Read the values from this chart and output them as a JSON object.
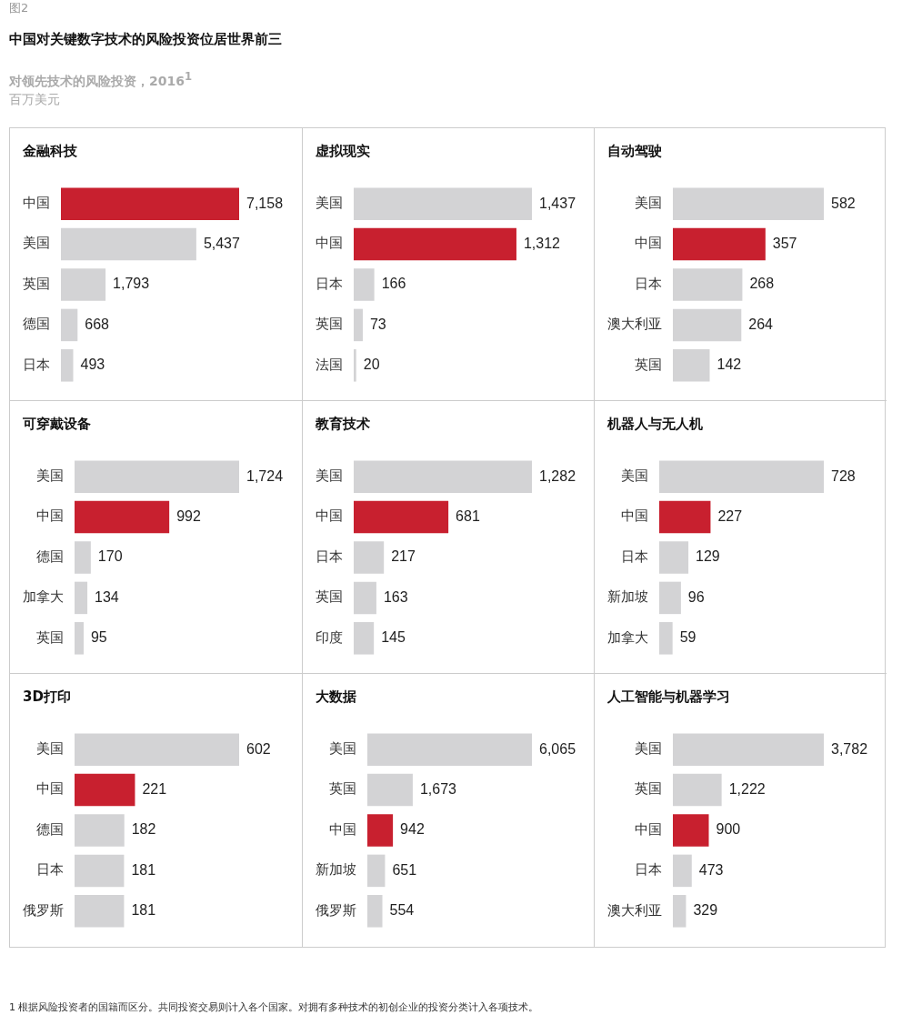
{
  "chart_data": [
    {
      "type": "other",
      "title": "中国对关键数字技术的风险投资位居世界前三",
      "subtitle": "对领先技术的风险投资，2016$^{1}$",
      "annotations": [
        "图2",
        "百万美元"
      ]
    },
    {
      "type": "bar",
      "orientation": "horizontal",
      "title": "金融科技",
      "categories": [
        "中国",
        "美国",
        "英国",
        "德国",
        "日本"
      ],
      "values": [
        7158,
        5437,
        1793,
        668,
        493
      ],
      "value_labels": [
        "7,158",
        "5,437",
        "1,793",
        "668",
        "493"
      ],
      "colors": [
        "#c8202f",
        "#d3d3d5",
        "#d3d3d5",
        "#d3d3d5",
        "#d3d3d5"
      ]
    },
    {
      "type": "bar",
      "orientation": "horizontal",
      "title": "虚拟现实",
      "categories": [
        "美国",
        "中国",
        "日本",
        "英国",
        "法国"
      ],
      "values": [
        1437,
        1312,
        166,
        73,
        20
      ],
      "value_labels": [
        "1,437",
        "1,312",
        "166",
        "73",
        "20"
      ],
      "colors": [
        "#d3d3d5",
        "#c8202f",
        "#d3d3d5",
        "#d3d3d5",
        "#d3d3d5"
      ]
    },
    {
      "type": "bar",
      "orientation": "horizontal",
      "title": "自动驾驶",
      "categories": [
        "美国",
        "中国",
        "日本",
        "澳大利亚",
        "英国"
      ],
      "values": [
        582,
        357,
        268,
        264,
        142
      ],
      "value_labels": [
        "582",
        "357",
        "268",
        "264",
        "142"
      ],
      "colors": [
        "#d3d3d5",
        "#c8202f",
        "#d3d3d5",
        "#d3d3d5",
        "#d3d3d5"
      ]
    },
    {
      "type": "bar",
      "orientation": "horizontal",
      "title": "可穿戴设备",
      "categories": [
        "美国",
        "中国",
        "德国",
        "加拿大",
        "英国"
      ],
      "values": [
        1724,
        992,
        170,
        134,
        95
      ],
      "value_labels": [
        "1,724",
        "992",
        "170",
        "134",
        "95"
      ],
      "colors": [
        "#d3d3d5",
        "#c8202f",
        "#d3d3d5",
        "#d3d3d5",
        "#d3d3d5"
      ]
    },
    {
      "type": "bar",
      "orientation": "horizontal",
      "title": "教育技术",
      "categories": [
        "美国",
        "中国",
        "日本",
        "英国",
        "印度"
      ],
      "values": [
        1282,
        681,
        217,
        163,
        145
      ],
      "value_labels": [
        "1,282",
        "681",
        "217",
        "163",
        "145"
      ],
      "colors": [
        "#d3d3d5",
        "#c8202f",
        "#d3d3d5",
        "#d3d3d5",
        "#d3d3d5"
      ]
    },
    {
      "type": "bar",
      "orientation": "horizontal",
      "title": "机器人与无人机",
      "categories": [
        "美国",
        "中国",
        "日本",
        "新加坡",
        "加拿大"
      ],
      "values": [
        728,
        227,
        129,
        96,
        59
      ],
      "value_labels": [
        "728",
        "227",
        "129",
        "96",
        "59"
      ],
      "colors": [
        "#d3d3d5",
        "#c8202f",
        "#d3d3d5",
        "#d3d3d5",
        "#d3d3d5"
      ]
    },
    {
      "type": "bar",
      "orientation": "horizontal",
      "title": "3D打印",
      "categories": [
        "美国",
        "中国",
        "德国",
        "日本",
        "俄罗斯"
      ],
      "values": [
        602,
        221,
        182,
        181,
        181
      ],
      "value_labels": [
        "602",
        "221",
        "182",
        "181",
        "181"
      ],
      "colors": [
        "#d3d3d5",
        "#c8202f",
        "#d3d3d5",
        "#d3d3d5",
        "#d3d3d5"
      ]
    },
    {
      "type": "bar",
      "orientation": "horizontal",
      "title": "大数据",
      "categories": [
        "美国",
        "英国",
        "中国",
        "新加坡",
        "俄罗斯"
      ],
      "values": [
        6065,
        1673,
        942,
        651,
        554
      ],
      "value_labels": [
        "6,065",
        "1,673",
        "942",
        "651",
        "554"
      ],
      "colors": [
        "#d3d3d5",
        "#d3d3d5",
        "#c8202f",
        "#d3d3d5",
        "#d3d3d5"
      ]
    },
    {
      "type": "bar",
      "orientation": "horizontal",
      "title": "人工智能与机器学习",
      "categories": [
        "美国",
        "英国",
        "中国",
        "日本",
        "澳大利亚"
      ],
      "values": [
        3782,
        1222,
        900,
        473,
        329
      ],
      "value_labels": [
        "3,782",
        "1,222",
        "900",
        "473",
        "329"
      ],
      "colors": [
        "#d3d3d5",
        "#d3d3d5",
        "#c8202f",
        "#d3d3d5",
        "#d3d3d5"
      ]
    },
    {
      "type": "other",
      "annotations": [
        "1 根据风险投资者的国籍而区分。共同投资交易则计入各个国家。对拥有多种技术的初创企业的投资分类计入各项技术。"
      ]
    }
  ]
}
